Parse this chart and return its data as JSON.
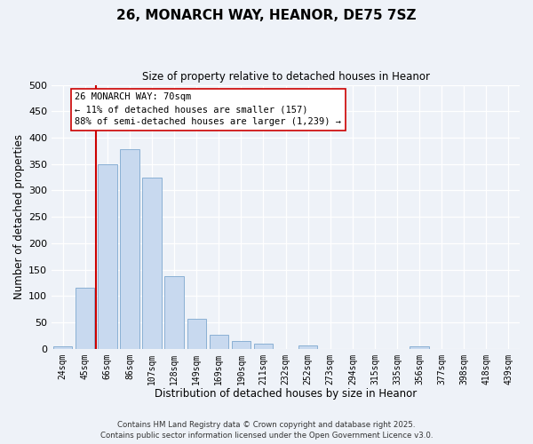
{
  "title": "26, MONARCH WAY, HEANOR, DE75 7SZ",
  "subtitle": "Size of property relative to detached houses in Heanor",
  "xlabel": "Distribution of detached houses by size in Heanor",
  "ylabel": "Number of detached properties",
  "bar_labels": [
    "24sqm",
    "45sqm",
    "66sqm",
    "86sqm",
    "107sqm",
    "128sqm",
    "149sqm",
    "169sqm",
    "190sqm",
    "211sqm",
    "232sqm",
    "252sqm",
    "273sqm",
    "294sqm",
    "315sqm",
    "335sqm",
    "356sqm",
    "377sqm",
    "398sqm",
    "418sqm",
    "439sqm"
  ],
  "bar_values": [
    5,
    115,
    350,
    378,
    325,
    138,
    57,
    26,
    15,
    9,
    0,
    6,
    0,
    0,
    0,
    0,
    4,
    0,
    0,
    0,
    0
  ],
  "bar_color": "#c8d9ef",
  "bar_edge_color": "#8ab0d4",
  "background_color": "#eef2f8",
  "grid_color": "#ffffff",
  "ylim": [
    0,
    500
  ],
  "yticks": [
    0,
    50,
    100,
    150,
    200,
    250,
    300,
    350,
    400,
    450,
    500
  ],
  "vline_color": "#cc0000",
  "annotation_title": "26 MONARCH WAY: 70sqm",
  "annotation_line1": "← 11% of detached houses are smaller (157)",
  "annotation_line2": "88% of semi-detached houses are larger (1,239) →",
  "annotation_box_color": "#ffffff",
  "annotation_box_edge_color": "#cc0000",
  "footer1": "Contains HM Land Registry data © Crown copyright and database right 2025.",
  "footer2": "Contains public sector information licensed under the Open Government Licence v3.0."
}
